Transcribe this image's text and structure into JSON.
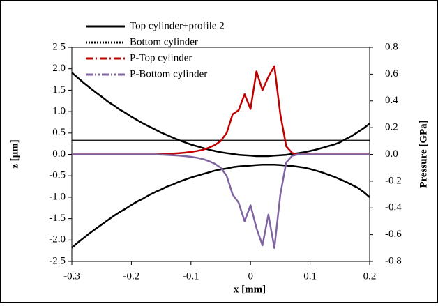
{
  "chart_data": {
    "type": "line",
    "x_label": "x [mm]",
    "y_label": "z [µm]",
    "y2_label": "Pressure [GPa]",
    "x": [
      -0.3,
      -0.29,
      -0.28,
      -0.27,
      -0.26,
      -0.25,
      -0.24,
      -0.23,
      -0.22,
      -0.21,
      -0.2,
      -0.19,
      -0.18,
      -0.17,
      -0.16,
      -0.15,
      -0.14,
      -0.13,
      -0.12,
      -0.11,
      -0.1,
      -0.09,
      -0.08,
      -0.07,
      -0.06,
      -0.05,
      -0.04,
      -0.03,
      -0.02,
      -0.01,
      0,
      0.01,
      0.02,
      0.03,
      0.04,
      0.05,
      0.06,
      0.07,
      0.08,
      0.09,
      0.1,
      0.11,
      0.12,
      0.13,
      0.14,
      0.15,
      0.16,
      0.17,
      0.18,
      0.19,
      0.2
    ],
    "series": [
      {
        "name": "Top cylinder+profile 2",
        "color": "#000000",
        "dash": "solid",
        "axis": "y",
        "values": [
          1.91,
          1.79,
          1.67,
          1.56,
          1.45,
          1.35,
          1.24,
          1.15,
          1.05,
          0.97,
          0.88,
          0.8,
          0.72,
          0.65,
          0.58,
          0.51,
          0.45,
          0.39,
          0.33,
          0.28,
          0.23,
          0.19,
          0.15,
          0.11,
          0.08,
          0.05,
          0.03,
          0.01,
          -0.01,
          -0.02,
          -0.03,
          -0.04,
          -0.04,
          -0.04,
          -0.03,
          -0.02,
          -0.01,
          0.01,
          0.03,
          0.05,
          0.08,
          0.11,
          0.15,
          0.19,
          0.23,
          0.28,
          0.36,
          0.43,
          0.52,
          0.61,
          0.72
        ]
      },
      {
        "name": "Bottom cylinder",
        "color": "#000000",
        "dash": "solid",
        "axis": "y",
        "values": [
          -2.18,
          -2.06,
          -1.95,
          -1.84,
          -1.74,
          -1.64,
          -1.54,
          -1.44,
          -1.35,
          -1.27,
          -1.18,
          -1.1,
          -1.03,
          -0.95,
          -0.88,
          -0.82,
          -0.75,
          -0.7,
          -0.64,
          -0.59,
          -0.54,
          -0.5,
          -0.46,
          -0.42,
          -0.38,
          -0.35,
          -0.33,
          -0.3,
          -0.28,
          -0.27,
          -0.26,
          -0.25,
          -0.24,
          -0.24,
          -0.24,
          -0.25,
          -0.26,
          -0.27,
          -0.29,
          -0.31,
          -0.34,
          -0.38,
          -0.42,
          -0.47,
          -0.52,
          -0.58,
          -0.64,
          -0.71,
          -0.78,
          -0.88,
          -1.0
        ]
      },
      {
        "name": "P-Top cylinder",
        "color": "#c00000",
        "dash": "solid",
        "axis": "y2",
        "values": [
          0,
          0,
          0,
          0,
          0,
          0,
          0,
          0,
          0,
          0,
          0,
          0,
          0,
          0,
          0,
          0.002,
          0.004,
          0.006,
          0.009,
          0.013,
          0.018,
          0.025,
          0.035,
          0.05,
          0.07,
          0.1,
          0.16,
          0.3,
          0.33,
          0.45,
          0.34,
          0.62,
          0.48,
          0.58,
          0.66,
          0.3,
          0.06,
          0.01,
          0,
          0,
          0,
          0,
          0,
          0,
          0,
          0,
          0,
          0,
          0,
          0,
          0
        ]
      },
      {
        "name": "P-Bottom cylinder",
        "color": "#8064a2",
        "dash": "solid",
        "axis": "y2",
        "values": [
          0,
          0,
          0,
          0,
          0,
          0,
          0,
          0,
          0,
          0,
          0,
          0,
          0,
          0,
          0,
          -0.002,
          -0.004,
          -0.006,
          -0.009,
          -0.013,
          -0.018,
          -0.025,
          -0.035,
          -0.05,
          -0.07,
          -0.1,
          -0.16,
          -0.3,
          -0.36,
          -0.5,
          -0.38,
          -0.55,
          -0.68,
          -0.45,
          -0.7,
          -0.3,
          -0.06,
          -0.01,
          0,
          0,
          0,
          0,
          0,
          0,
          0,
          0,
          0,
          0,
          0,
          0,
          0
        ]
      }
    ],
    "legend_dash": [
      "solid",
      "dotted",
      "dashdot",
      "dashdotdot"
    ],
    "hline": 0.33,
    "xlim": [
      -0.3,
      0.2
    ],
    "xticks": [
      -0.3,
      -0.2,
      -0.1,
      0,
      0.1,
      0.2
    ],
    "ylim": [
      -2.5,
      2.5
    ],
    "yticks": [
      -2.5,
      {
        "value": -2,
        "label": "-2.0"
      },
      -1.5,
      {
        "value": -1,
        "label": "-1.0"
      },
      -0.5,
      {
        "value": 0,
        "label": "0.0"
      },
      0.5,
      {
        "value": 1,
        "label": "1.0"
      },
      1.5,
      {
        "value": 2,
        "label": "2.0"
      },
      2.5
    ],
    "y2lim": [
      -0.8,
      0.8
    ],
    "y2ticks": [
      -0.8,
      -0.6,
      -0.4,
      -0.2,
      {
        "value": 0,
        "label": "0.0"
      },
      0.2,
      0.4,
      0.6,
      0.8
    ],
    "legend": "top-left"
  }
}
